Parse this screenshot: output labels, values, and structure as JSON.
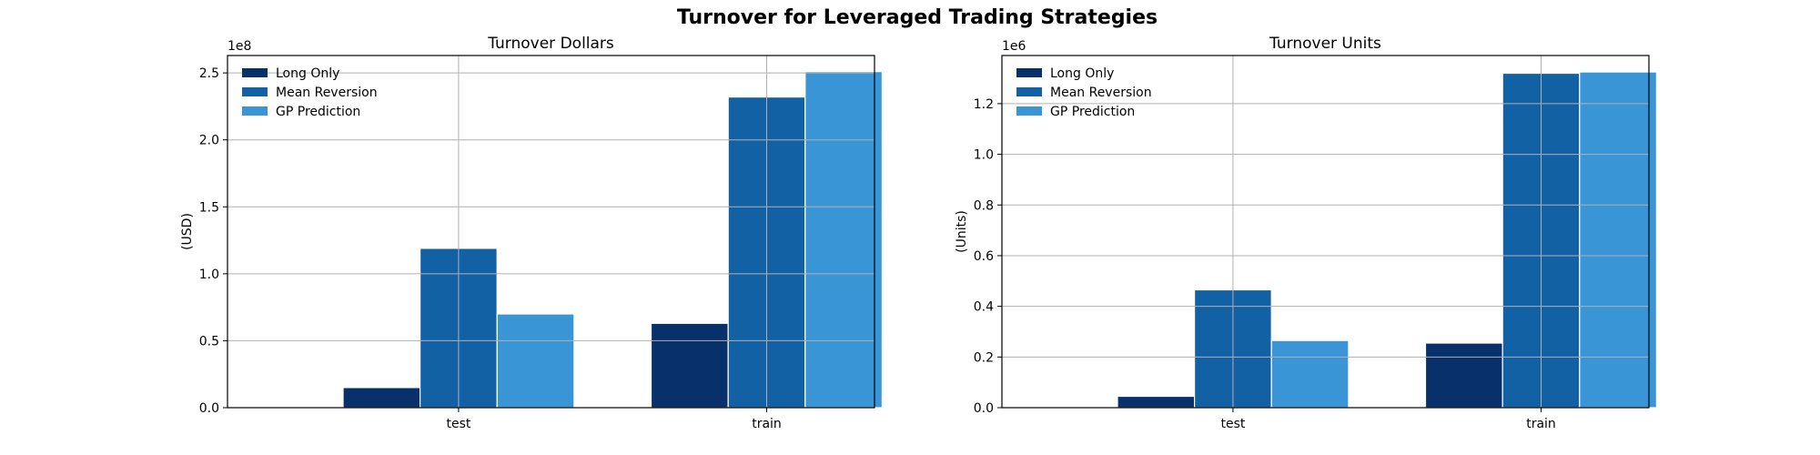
{
  "figure": {
    "title": "Turnover for Leveraged Trading Strategies"
  },
  "chart_data": [
    {
      "type": "bar",
      "title": "Turnover Dollars",
      "xlabel": "",
      "ylabel": "(USD)",
      "offset_label": "1e8",
      "categories": [
        "test",
        "train"
      ],
      "ylim": [
        0,
        2.63
      ],
      "yticks": [
        0.0,
        0.5,
        1.0,
        1.5,
        2.0,
        2.5
      ],
      "ytick_labels": [
        "0.0",
        "0.5",
        "1.0",
        "1.5",
        "2.0",
        "2.5"
      ],
      "grid": true,
      "legend_position": "top-left",
      "series": [
        {
          "name": "Long Only",
          "color": "#08306b",
          "values": [
            0.15,
            0.63
          ]
        },
        {
          "name": "Mean Reversion",
          "color": "#1261a4",
          "values": [
            1.19,
            2.32
          ]
        },
        {
          "name": "GP Prediction",
          "color": "#3a95d6",
          "values": [
            0.7,
            2.51
          ]
        }
      ]
    },
    {
      "type": "bar",
      "title": "Turnover Units",
      "xlabel": "",
      "ylabel": "(Units)",
      "offset_label": "1e6",
      "categories": [
        "test",
        "train"
      ],
      "ylim": [
        0,
        1.39
      ],
      "yticks": [
        0.0,
        0.2,
        0.4,
        0.6,
        0.8,
        1.0,
        1.2
      ],
      "ytick_labels": [
        "0.0",
        "0.2",
        "0.4",
        "0.6",
        "0.8",
        "1.0",
        "1.2"
      ],
      "grid": true,
      "legend_position": "top-left",
      "series": [
        {
          "name": "Long Only",
          "color": "#08306b",
          "values": [
            0.045,
            0.255
          ]
        },
        {
          "name": "Mean Reversion",
          "color": "#1261a4",
          "values": [
            0.465,
            1.32
          ]
        },
        {
          "name": "GP Prediction",
          "color": "#3a95d6",
          "values": [
            0.265,
            1.325
          ]
        }
      ]
    }
  ]
}
